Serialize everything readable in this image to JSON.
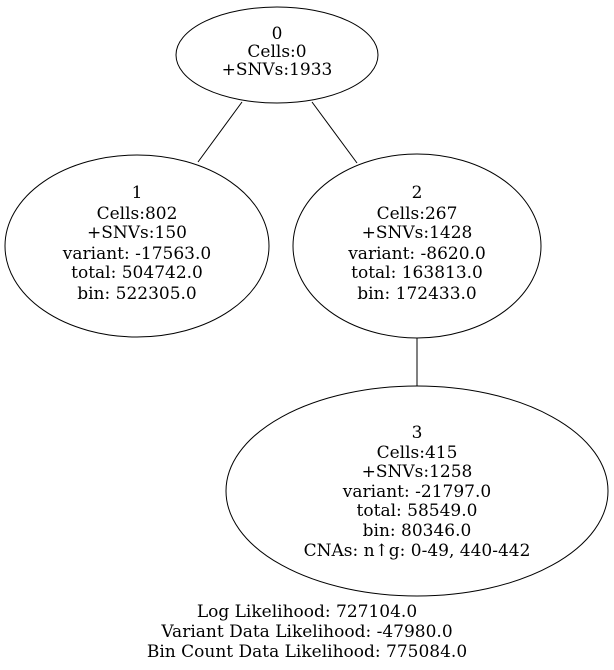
{
  "nodes": [
    {
      "id": "0",
      "lines": [
        "0",
        "Cells:0",
        "+SNVs:1933"
      ]
    },
    {
      "id": "1",
      "lines": [
        "1",
        "Cells:802",
        "+SNVs:150",
        "variant: -17563.0",
        "total: 504742.0",
        "bin: 522305.0"
      ]
    },
    {
      "id": "2",
      "lines": [
        "2",
        "Cells:267",
        "+SNVs:1428",
        "variant: -8620.0",
        "total: 163813.0",
        "bin: 172433.0"
      ]
    },
    {
      "id": "3",
      "lines": [
        "3",
        "Cells:415",
        "+SNVs:1258",
        "variant: -21797.0",
        "total: 58549.0",
        "bin: 80346.0",
        "CNAs: n↑g: 0-49, 440-442"
      ]
    }
  ],
  "edges": [
    {
      "from": "0",
      "to": "1"
    },
    {
      "from": "0",
      "to": "2"
    },
    {
      "from": "2",
      "to": "3"
    }
  ],
  "footer": {
    "lines": [
      "Log Likelihood: 727104.0",
      "Variant Data Likelihood: -47980.0",
      "Bin Count Data Likelihood: 775084.0"
    ]
  }
}
